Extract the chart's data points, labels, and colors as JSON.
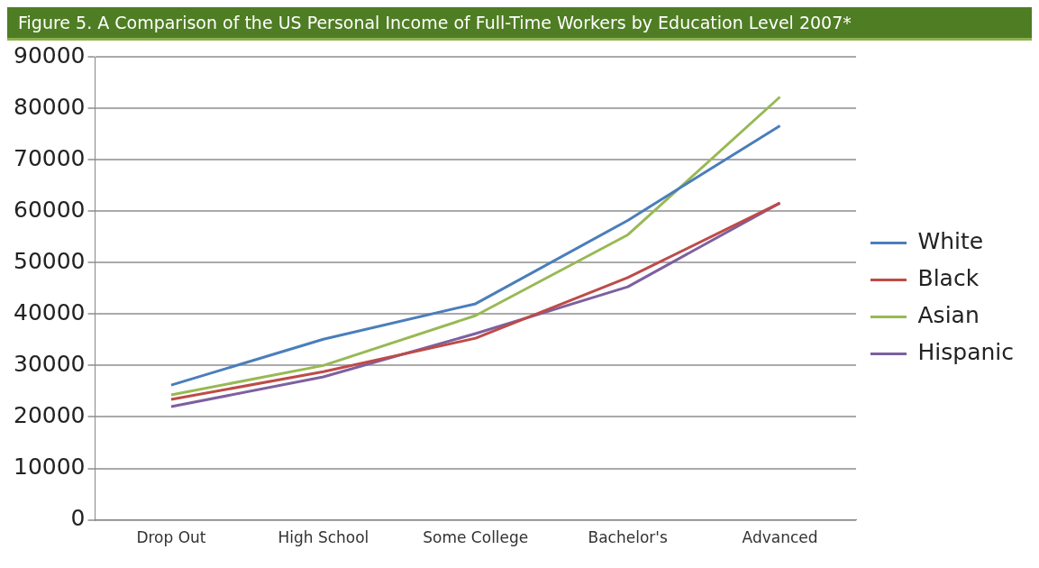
{
  "chart_data": {
    "type": "line",
    "title": "Figure 5. A Comparison of the US Personal Income of Full-Time Workers by Education Level 2007*",
    "categories": [
      "Drop Out",
      "High School",
      "Some College",
      "Bachelor's",
      "Advanced"
    ],
    "series": [
      {
        "name": "White",
        "color": "#4a7ebb",
        "values": [
          26200,
          35100,
          42000,
          58200,
          76600
        ]
      },
      {
        "name": "Black",
        "color": "#be4b48",
        "values": [
          23400,
          28800,
          35300,
          47100,
          61600
        ]
      },
      {
        "name": "Asian",
        "color": "#98b954",
        "values": [
          24300,
          30000,
          39700,
          55400,
          82200
        ]
      },
      {
        "name": "Hispanic",
        "color": "#7d60a0",
        "values": [
          22000,
          27800,
          36200,
          45300,
          61600
        ]
      }
    ],
    "ylim": [
      0,
      90000
    ],
    "yticks": [
      0,
      10000,
      20000,
      30000,
      40000,
      50000,
      60000,
      70000,
      80000,
      90000
    ],
    "grid": "y",
    "legend": "right",
    "marker": "none",
    "line_style": "solid"
  }
}
